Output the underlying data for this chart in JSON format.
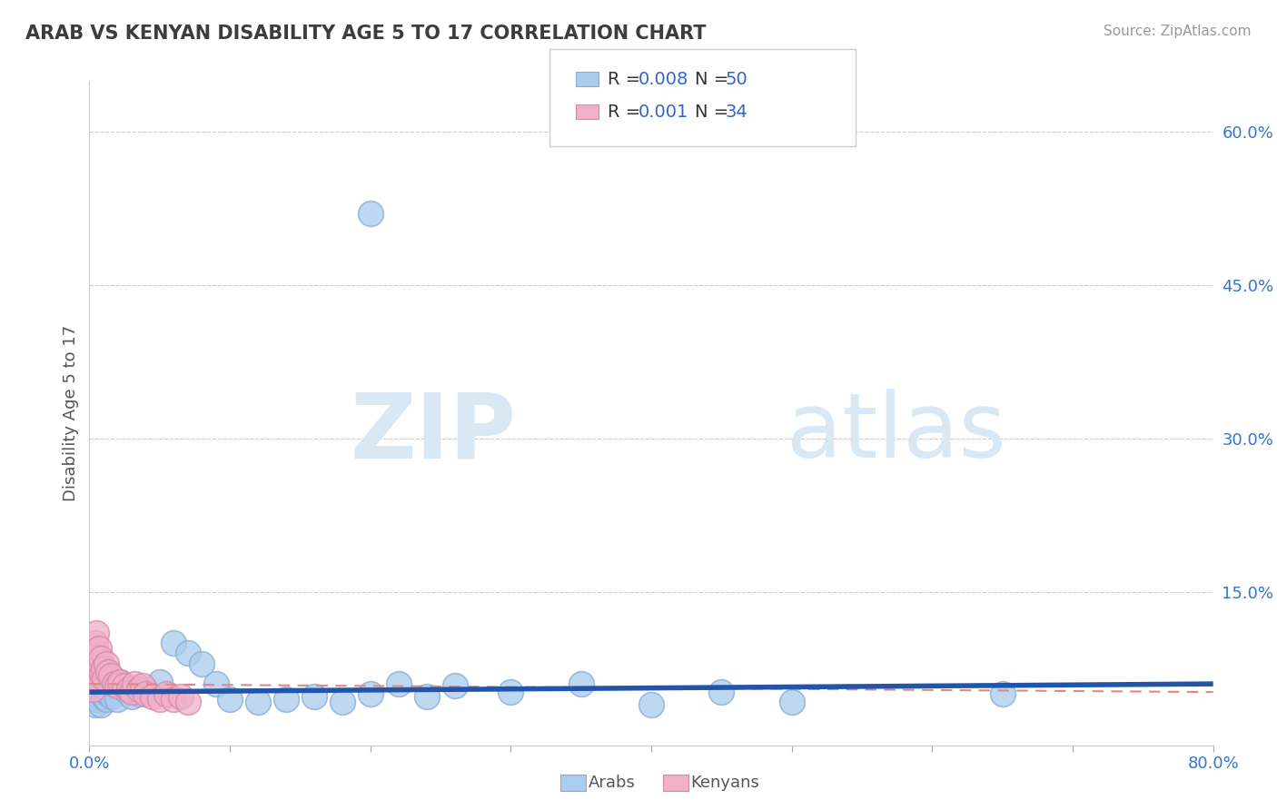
{
  "title": "ARAB VS KENYAN DISABILITY AGE 5 TO 17 CORRELATION CHART",
  "source": "Source: ZipAtlas.com",
  "ylabel": "Disability Age 5 to 17",
  "xlim": [
    0.0,
    0.8
  ],
  "ylim": [
    0.0,
    0.65
  ],
  "ytick_right": [
    0.15,
    0.3,
    0.45,
    0.6
  ],
  "ytick_right_labels": [
    "15.0%",
    "30.0%",
    "45.0%",
    "60.0%"
  ],
  "title_color": "#3c3c3c",
  "source_color": "#999999",
  "grid_color": "#cccccc",
  "arab_color": "#aaccee",
  "arab_edge_color": "#88aad0",
  "kenyan_color": "#f0b0c8",
  "kenyan_edge_color": "#d888a8",
  "arab_line_color": "#2255aa",
  "kenyan_line_color": "#dd8888",
  "tick_color": "#3377cc",
  "legend_R_arab": "R = 0.008",
  "legend_N_arab": "N = 50",
  "legend_R_kenyan": "R = 0.001",
  "legend_N_kenyan": "N = 34",
  "legend_value_color": "#3366cc",
  "legend_text_color": "#333333",
  "arab_scatter_x": [
    0.001,
    0.002,
    0.002,
    0.003,
    0.003,
    0.004,
    0.004,
    0.005,
    0.005,
    0.006,
    0.006,
    0.007,
    0.007,
    0.008,
    0.008,
    0.009,
    0.01,
    0.011,
    0.012,
    0.013,
    0.015,
    0.016,
    0.018,
    0.02,
    0.022,
    0.025,
    0.03,
    0.035,
    0.04,
    0.05,
    0.06,
    0.07,
    0.08,
    0.09,
    0.1,
    0.12,
    0.14,
    0.16,
    0.18,
    0.2,
    0.22,
    0.24,
    0.26,
    0.3,
    0.35,
    0.4,
    0.45,
    0.5,
    0.65,
    0.2
  ],
  "arab_scatter_y": [
    0.055,
    0.06,
    0.048,
    0.052,
    0.065,
    0.055,
    0.04,
    0.058,
    0.045,
    0.062,
    0.05,
    0.048,
    0.055,
    0.052,
    0.04,
    0.058,
    0.048,
    0.055,
    0.045,
    0.05,
    0.052,
    0.048,
    0.058,
    0.045,
    0.062,
    0.055,
    0.048,
    0.05,
    0.055,
    0.062,
    0.1,
    0.09,
    0.08,
    0.06,
    0.045,
    0.042,
    0.045,
    0.048,
    0.042,
    0.05,
    0.06,
    0.048,
    0.058,
    0.052,
    0.06,
    0.04,
    0.052,
    0.042,
    0.05,
    0.52
  ],
  "kenyan_scatter_x": [
    0.001,
    0.002,
    0.002,
    0.003,
    0.003,
    0.004,
    0.004,
    0.005,
    0.005,
    0.006,
    0.007,
    0.008,
    0.009,
    0.01,
    0.011,
    0.012,
    0.013,
    0.015,
    0.018,
    0.02,
    0.022,
    0.025,
    0.028,
    0.03,
    0.032,
    0.035,
    0.038,
    0.04,
    0.045,
    0.05,
    0.055,
    0.06,
    0.065,
    0.07
  ],
  "kenyan_scatter_y": [
    0.06,
    0.075,
    0.055,
    0.085,
    0.095,
    0.09,
    0.1,
    0.08,
    0.11,
    0.075,
    0.095,
    0.085,
    0.07,
    0.075,
    0.065,
    0.08,
    0.072,
    0.068,
    0.06,
    0.058,
    0.062,
    0.058,
    0.055,
    0.052,
    0.06,
    0.055,
    0.058,
    0.05,
    0.048,
    0.045,
    0.05,
    0.045,
    0.048,
    0.042
  ],
  "arab_trend_x": [
    0.0,
    0.8
  ],
  "arab_trend_y": [
    0.052,
    0.06
  ],
  "kenyan_trend_x": [
    0.0,
    0.8
  ],
  "kenyan_trend_y": [
    0.06,
    0.052
  ],
  "watermark_zip": "ZIP",
  "watermark_atlas": "atlas",
  "watermark_color": "#d8e8f5"
}
